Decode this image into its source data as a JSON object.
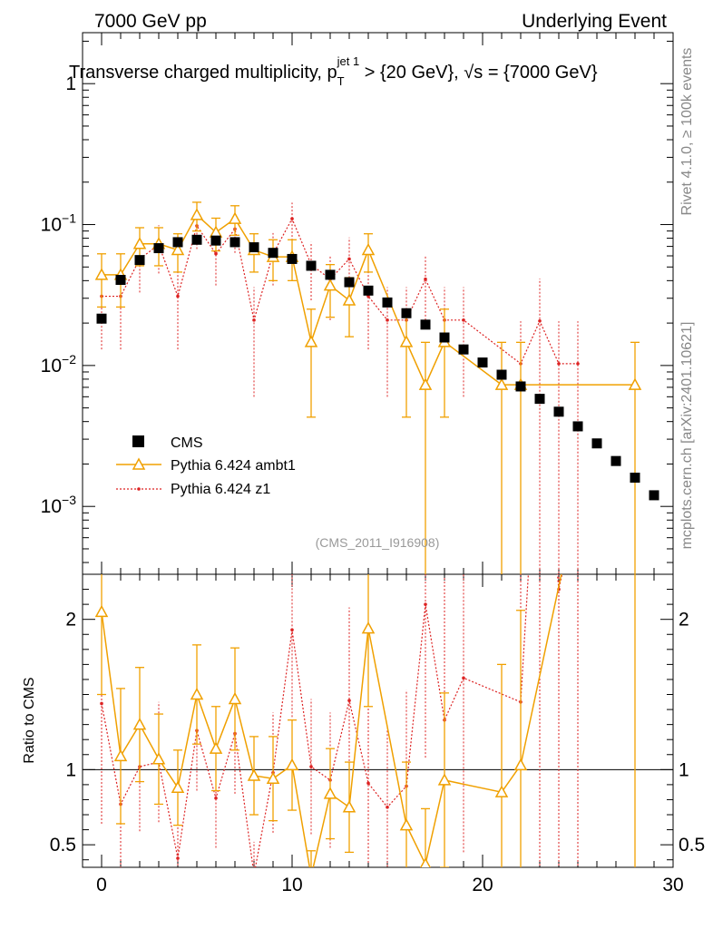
{
  "header": {
    "left": "7000 GeV pp",
    "right": "Underlying Event"
  },
  "side_labels": {
    "version": "Rivet 4.1.0, ≥ 100k events",
    "source": "mcplots.cern.ch [arXiv:2401.10621]"
  },
  "chart_data": {
    "type": "scatter",
    "title": "Transverse charged multiplicity, p_T^{jet 1} > {20 GeV}, √s = {7000 GeV}",
    "title_parts": {
      "main": "Transverse charged multiplicity, p",
      "sub": "T",
      "sup": "jet 1",
      "rest": " > {20 GeV}, ",
      "sqrt": "√",
      "s_rest": "s = {7000 GeV}"
    },
    "watermark": "(CMS_2011_I916908)",
    "xlabel": "",
    "xlim": [
      -1,
      30
    ],
    "x_ticks": [
      "0",
      "10",
      "20",
      "30"
    ],
    "x_tick_values": [
      0,
      10,
      20,
      30
    ],
    "main_panel": {
      "ylabel": "",
      "yscale": "log",
      "ylim": [
        0.00033,
        2.3
      ],
      "y_ticks": [
        {
          "value": 1,
          "base": "1",
          "exp": ""
        },
        {
          "value": 0.1,
          "base": "10",
          "exp": "−1"
        },
        {
          "value": 0.01,
          "base": "10",
          "exp": "−2"
        },
        {
          "value": 0.001,
          "base": "10",
          "exp": "−3"
        }
      ]
    },
    "ratio_panel": {
      "ylabel": "Ratio to CMS",
      "ylim": [
        0.35,
        2.3
      ],
      "y_ticks": [
        {
          "value": 0.5,
          "label": "0.5"
        },
        {
          "value": 1,
          "label": "1"
        },
        {
          "value": 2,
          "label": "2"
        }
      ]
    },
    "legend": {
      "placement": "bottom-left",
      "entries": [
        "CMS",
        "Pythia 6.424 ambt1",
        "Pythia 6.424 z1"
      ]
    },
    "series": [
      {
        "name": "CMS",
        "style": "square",
        "color": "#000000",
        "x": [
          0,
          1,
          2,
          3,
          4,
          5,
          6,
          7,
          8,
          9,
          10,
          11,
          12,
          13,
          14,
          15,
          16,
          17,
          18,
          19,
          20,
          21,
          22,
          23,
          24,
          25,
          26,
          27,
          28,
          29
        ],
        "y": [
          0.0215,
          0.0405,
          0.056,
          0.068,
          0.075,
          0.078,
          0.077,
          0.075,
          0.069,
          0.063,
          0.057,
          0.051,
          0.044,
          0.039,
          0.034,
          0.028,
          0.0235,
          0.0195,
          0.0158,
          0.013,
          0.0105,
          0.0086,
          0.0071,
          0.0058,
          0.0047,
          0.0037,
          0.0028,
          0.0021,
          0.0016,
          0.0012
        ]
      },
      {
        "name": "Pythia 6.424 ambt1",
        "style": "triangle-solid",
        "color": "#f0a000",
        "x": [
          0,
          1,
          2,
          3,
          4,
          5,
          6,
          7,
          8,
          9,
          10,
          11,
          12,
          13,
          14,
          16,
          17,
          18,
          21,
          22,
          28
        ],
        "y": [
          0.044,
          0.044,
          0.073,
          0.073,
          0.066,
          0.117,
          0.088,
          0.11,
          0.066,
          0.059,
          0.059,
          0.0147,
          0.037,
          0.029,
          0.066,
          0.0147,
          0.0073,
          0.0147,
          0.0073,
          0.0073,
          0.0073
        ],
        "err": [
          0.018,
          0.018,
          0.022,
          0.022,
          0.02,
          0.027,
          0.023,
          0.026,
          0.02,
          0.019,
          0.019,
          0.0104,
          0.015,
          0.013,
          0.02,
          0.0104,
          0.0073,
          0.0104,
          0.0073,
          0.0073,
          0.0073
        ],
        "ratio": [
          2.05,
          1.09,
          1.3,
          1.07,
          0.88,
          1.5,
          1.14,
          1.47,
          0.96,
          0.94,
          1.03,
          0.29,
          0.84,
          0.75,
          1.94,
          0.63,
          0.37,
          0.93,
          0.85,
          1.03,
          4.6
        ],
        "ratio_err": [
          0.55,
          0.45,
          0.38,
          0.3,
          0.25,
          0.33,
          0.28,
          0.34,
          0.26,
          0.28,
          0.3,
          0.17,
          0.3,
          0.3,
          0.52,
          0.42,
          0.37,
          0.58,
          0.85,
          1.03,
          4.6
        ]
      },
      {
        "name": "Pythia 6.424 z1",
        "style": "dot-dotted",
        "color": "#dd2222",
        "x": [
          0,
          1,
          2,
          3,
          4,
          5,
          6,
          7,
          8,
          9,
          10,
          11,
          12,
          13,
          14,
          15,
          16,
          17,
          18,
          19,
          22,
          23,
          24,
          25
        ],
        "y": [
          0.031,
          0.031,
          0.057,
          0.072,
          0.031,
          0.098,
          0.062,
          0.093,
          0.021,
          0.062,
          0.11,
          0.052,
          0.041,
          0.057,
          0.031,
          0.021,
          0.021,
          0.041,
          0.021,
          0.021,
          0.0103,
          0.0207,
          0.0103,
          0.0103
        ],
        "err": [
          0.018,
          0.018,
          0.024,
          0.027,
          0.018,
          0.031,
          0.025,
          0.03,
          0.015,
          0.025,
          0.033,
          0.023,
          0.02,
          0.024,
          0.018,
          0.015,
          0.015,
          0.02,
          0.015,
          0.015,
          0.0103,
          0.0207,
          0.0103,
          0.0103
        ],
        "ratio": [
          1.44,
          0.77,
          1.02,
          1.05,
          0.41,
          1.26,
          0.81,
          1.24,
          0.3,
          0.98,
          1.93,
          1.02,
          0.93,
          1.46,
          0.91,
          0.75,
          0.89,
          2.1,
          1.33,
          1.61,
          1.45,
          3.57,
          2.2,
          2.79
        ],
        "ratio_err": [
          0.8,
          0.45,
          0.43,
          0.4,
          0.24,
          0.4,
          0.33,
          0.4,
          0.22,
          0.4,
          0.58,
          0.45,
          0.45,
          0.62,
          0.53,
          0.54,
          0.64,
          1.02,
          0.95,
          1.16,
          1.45,
          3.57,
          2.2,
          2.79
        ]
      }
    ]
  }
}
